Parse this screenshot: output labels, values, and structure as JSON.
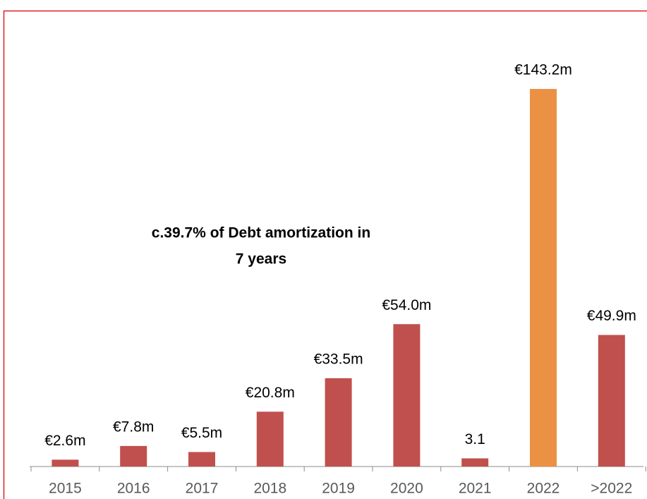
{
  "chart_data": {
    "type": "bar",
    "categories": [
      "2015",
      "2016",
      "2017",
      "2018",
      "2019",
      "2020",
      "2021",
      "2022",
      ">2022"
    ],
    "values": [
      2.6,
      7.8,
      5.5,
      20.8,
      33.5,
      54.0,
      3.1,
      143.2,
      49.9
    ],
    "value_labels": [
      "€2.6m",
      "€7.8m",
      "€5.5m",
      "€20.8m",
      "€33.5m",
      "€54.0m",
      "3.1",
      "€143.2m",
      "€49.9m"
    ],
    "colors": [
      "#c0504d",
      "#c0504d",
      "#c0504d",
      "#c0504d",
      "#c0504d",
      "#c0504d",
      "#c0504d",
      "#eb9144",
      "#c0504d"
    ],
    "annotation": [
      "c.39.7% of Debt amortization in",
      "7 years"
    ]
  }
}
